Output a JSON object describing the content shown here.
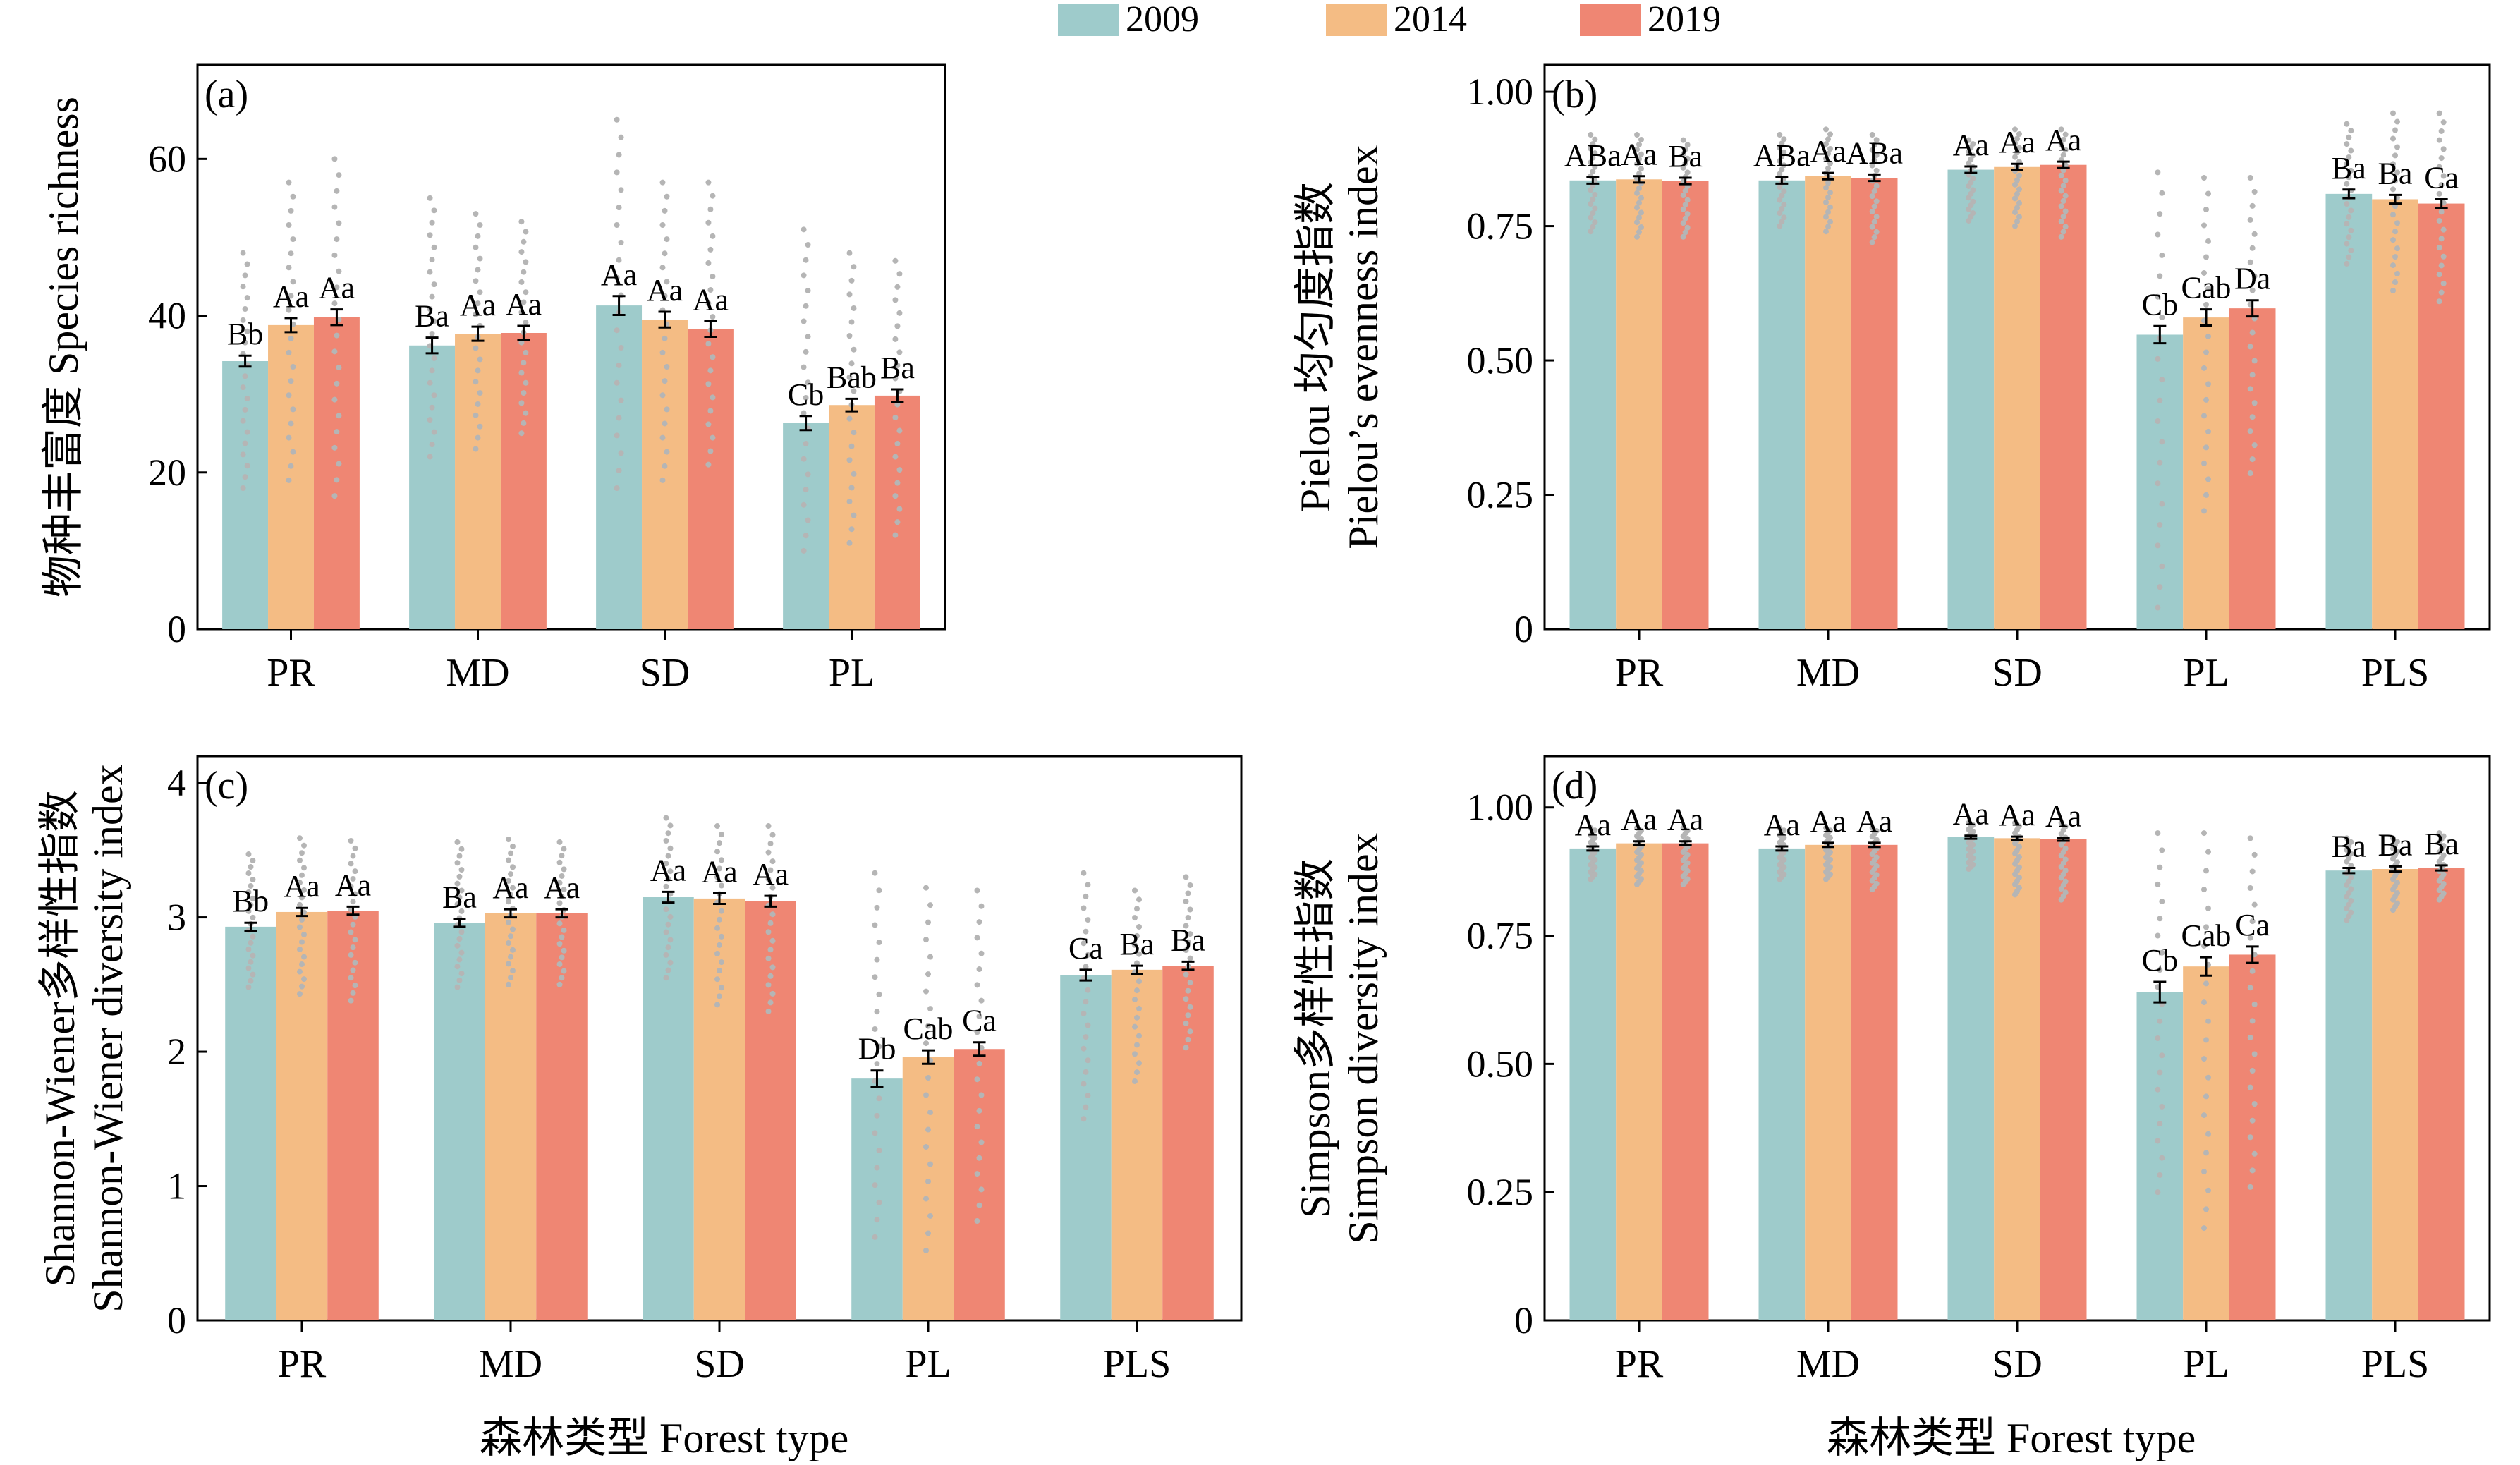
{
  "legend": {
    "items": [
      {
        "label": "2009",
        "color": "#9ecbcb"
      },
      {
        "label": "2014",
        "color": "#f4bc84"
      },
      {
        "label": "2019",
        "color": "#ef8673"
      }
    ]
  },
  "x_axis_title": "森林类型 Forest type",
  "chart_data": [
    {
      "panel": "(a)",
      "type": "bar",
      "ylabel_lines": [
        "物种丰富度 Species richness"
      ],
      "ylim": [
        0,
        72
      ],
      "yticks": [
        0,
        20,
        40,
        60
      ],
      "categories": [
        "PR",
        "MD",
        "SD",
        "PL"
      ],
      "series": [
        {
          "name": "2009",
          "values": [
            34.2,
            36.2,
            41.3,
            26.3
          ],
          "errors": [
            0.7,
            1.0,
            1.2,
            0.9
          ]
        },
        {
          "name": "2014",
          "values": [
            38.8,
            37.7,
            39.5,
            28.6
          ],
          "errors": [
            0.9,
            0.9,
            1.0,
            0.8
          ]
        },
        {
          "name": "2019",
          "values": [
            39.8,
            37.8,
            38.3,
            29.8
          ],
          "errors": [
            1.0,
            0.9,
            1.0,
            0.8
          ]
        }
      ],
      "letters": [
        [
          "Bb",
          "Aa",
          "Aa"
        ],
        [
          "Ba",
          "Aa",
          "Aa"
        ],
        [
          "Aa",
          "Aa",
          "Aa"
        ],
        [
          "Cb",
          "Bab",
          "Ba"
        ]
      ],
      "points": [
        [
          [
            18,
            48
          ],
          [
            19,
            57
          ],
          [
            17,
            60
          ]
        ],
        [
          [
            22,
            55
          ],
          [
            23,
            53
          ],
          [
            25,
            52
          ]
        ],
        [
          [
            18,
            65
          ],
          [
            19,
            57
          ],
          [
            21,
            57
          ]
        ],
        [
          [
            10,
            51
          ],
          [
            11,
            48
          ],
          [
            12,
            47
          ]
        ]
      ]
    },
    {
      "panel": "(b)",
      "type": "bar",
      "ylabel_lines": [
        "Pielou 均匀度指数",
        "Pielou’s evenness index"
      ],
      "ylim": [
        0,
        1.05
      ],
      "yticks": [
        0,
        0.25,
        0.5,
        0.75,
        1.0
      ],
      "ytick_labels": [
        "0",
        "0.25",
        "0.50",
        "0.75",
        "1.00"
      ],
      "categories": [
        "PR",
        "MD",
        "SD",
        "PL",
        "PLS"
      ],
      "series": [
        {
          "name": "2009",
          "values": [
            0.835,
            0.835,
            0.855,
            0.548,
            0.81
          ],
          "errors": [
            0.006,
            0.006,
            0.006,
            0.016,
            0.008
          ]
        },
        {
          "name": "2014",
          "values": [
            0.837,
            0.843,
            0.86,
            0.58,
            0.8
          ],
          "errors": [
            0.006,
            0.006,
            0.006,
            0.015,
            0.008
          ]
        },
        {
          "name": "2019",
          "values": [
            0.834,
            0.84,
            0.864,
            0.597,
            0.792
          ],
          "errors": [
            0.006,
            0.006,
            0.006,
            0.015,
            0.008
          ]
        }
      ],
      "letters": [
        [
          "ABa",
          "Aa",
          "Ba"
        ],
        [
          "ABa",
          "Aa",
          "ABa"
        ],
        [
          "Aa",
          "Aa",
          "Aa"
        ],
        [
          "Cb",
          "Cab",
          "Da"
        ],
        [
          "Ba",
          "Ba",
          "Ca"
        ]
      ],
      "points": [
        [
          [
            0.74,
            0.92
          ],
          [
            0.73,
            0.92
          ],
          [
            0.73,
            0.91
          ]
        ],
        [
          [
            0.75,
            0.92
          ],
          [
            0.74,
            0.93
          ],
          [
            0.72,
            0.92
          ]
        ],
        [
          [
            0.76,
            0.91
          ],
          [
            0.75,
            0.93
          ],
          [
            0.73,
            0.93
          ]
        ],
        [
          [
            0.04,
            0.85
          ],
          [
            0.22,
            0.84
          ],
          [
            0.29,
            0.84
          ]
        ],
        [
          [
            0.68,
            0.94
          ],
          [
            0.63,
            0.96
          ],
          [
            0.61,
            0.96
          ]
        ]
      ]
    },
    {
      "panel": "(c)",
      "type": "bar",
      "ylabel_lines": [
        "Shannon-Wiener多样性指数",
        "Shannon-Wiener diversity index"
      ],
      "ylim": [
        0,
        4.2
      ],
      "yticks": [
        0,
        1,
        2,
        3,
        4
      ],
      "categories": [
        "PR",
        "MD",
        "SD",
        "PL",
        "PLS"
      ],
      "series": [
        {
          "name": "2009",
          "values": [
            2.93,
            2.96,
            3.15,
            1.8,
            2.57
          ],
          "errors": [
            0.03,
            0.03,
            0.04,
            0.06,
            0.04
          ]
        },
        {
          "name": "2014",
          "values": [
            3.04,
            3.03,
            3.14,
            1.96,
            2.61
          ],
          "errors": [
            0.03,
            0.03,
            0.04,
            0.05,
            0.03
          ]
        },
        {
          "name": "2019",
          "values": [
            3.05,
            3.03,
            3.12,
            2.02,
            2.64
          ],
          "errors": [
            0.03,
            0.03,
            0.04,
            0.05,
            0.03
          ]
        }
      ],
      "letters": [
        [
          "Bb",
          "Aa",
          "Aa"
        ],
        [
          "Ba",
          "Aa",
          "Aa"
        ],
        [
          "Aa",
          "Aa",
          "Aa"
        ],
        [
          "Db",
          "Cab",
          "Ca"
        ],
        [
          "Ca",
          "Ba",
          "Ba"
        ]
      ],
      "points": [
        [
          [
            2.48,
            3.47
          ],
          [
            2.43,
            3.59
          ],
          [
            2.38,
            3.57
          ]
        ],
        [
          [
            2.48,
            3.56
          ],
          [
            2.5,
            3.58
          ],
          [
            2.5,
            3.56
          ]
        ],
        [
          [
            2.55,
            3.74
          ],
          [
            2.35,
            3.68
          ],
          [
            2.3,
            3.68
          ]
        ],
        [
          [
            0.62,
            3.33
          ],
          [
            0.52,
            3.22
          ],
          [
            0.74,
            3.2
          ]
        ],
        [
          [
            1.5,
            3.33
          ],
          [
            1.78,
            3.2
          ],
          [
            2.03,
            3.3
          ]
        ]
      ]
    },
    {
      "panel": "(d)",
      "type": "bar",
      "ylabel_lines": [
        "Simpson多样性指数",
        "Simpson diversity index"
      ],
      "ylim": [
        0,
        1.1
      ],
      "yticks": [
        0,
        0.25,
        0.5,
        0.75,
        1.0
      ],
      "ytick_labels": [
        "0",
        "0.25",
        "0.50",
        "0.75",
        "1.00"
      ],
      "categories": [
        "PR",
        "MD",
        "SD",
        "PL",
        "PLS"
      ],
      "series": [
        {
          "name": "2009",
          "values": [
            0.92,
            0.92,
            0.942,
            0.64,
            0.877
          ],
          "errors": [
            0.004,
            0.004,
            0.003,
            0.02,
            0.005
          ]
        },
        {
          "name": "2014",
          "values": [
            0.93,
            0.927,
            0.94,
            0.69,
            0.88
          ],
          "errors": [
            0.004,
            0.004,
            0.003,
            0.018,
            0.005
          ]
        },
        {
          "name": "2019",
          "values": [
            0.93,
            0.927,
            0.938,
            0.713,
            0.882
          ],
          "errors": [
            0.004,
            0.004,
            0.003,
            0.016,
            0.005
          ]
        }
      ],
      "letters": [
        [
          "Aa",
          "Aa",
          "Aa"
        ],
        [
          "Aa",
          "Aa",
          "Aa"
        ],
        [
          "Aa",
          "Aa",
          "Aa"
        ],
        [
          "Cb",
          "Cab",
          "Ca"
        ],
        [
          "Ba",
          "Ba",
          "Ba"
        ]
      ],
      "points": [
        [
          [
            0.86,
            0.96
          ],
          [
            0.85,
            0.96
          ],
          [
            0.85,
            0.96
          ]
        ],
        [
          [
            0.86,
            0.96
          ],
          [
            0.86,
            0.96
          ],
          [
            0.84,
            0.96
          ]
        ],
        [
          [
            0.88,
            0.97
          ],
          [
            0.83,
            0.97
          ],
          [
            0.82,
            0.97
          ]
        ],
        [
          [
            0.25,
            0.95
          ],
          [
            0.18,
            0.95
          ],
          [
            0.26,
            0.94
          ]
        ],
        [
          [
            0.78,
            0.94
          ],
          [
            0.8,
            0.94
          ],
          [
            0.82,
            0.95
          ]
        ]
      ]
    }
  ]
}
